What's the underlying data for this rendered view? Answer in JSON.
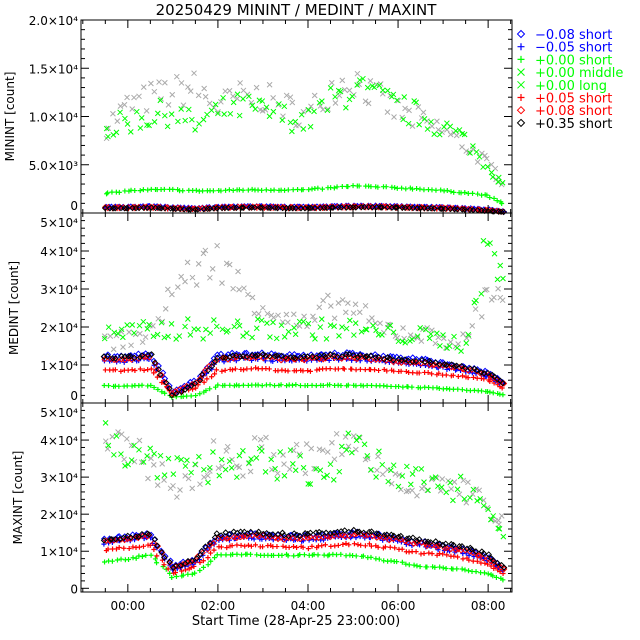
{
  "chart_data": {
    "type": "scatter",
    "title": "20250429 MININT / MEDINT / MAXINT",
    "xlabel": "Start Time (28-Apr-25 23:00:00)",
    "xlim": [
      -1.04,
      8.53
    ],
    "x_tick_values": [
      0,
      2,
      4,
      6,
      8
    ],
    "x_tick_labels": [
      "00:00",
      "02:00",
      "04:00",
      "06:00",
      "08:00"
    ],
    "x": [
      -0.5,
      0,
      0.5,
      1,
      1.5,
      2,
      2.5,
      3,
      3.5,
      4,
      4.5,
      5,
      5.5,
      6,
      6.5,
      7,
      7.5,
      8,
      8.4
    ],
    "legend_position": "right, outside",
    "legend": [
      {
        "id": "m008",
        "label": "−0.08 short",
        "color": "#0000ff",
        "marker": "diamond"
      },
      {
        "id": "m005",
        "label": "−0.05 short",
        "color": "#0000ff",
        "marker": "plus"
      },
      {
        "id": "p000s",
        "label": "+0.00 short",
        "color": "#00ff00",
        "marker": "plus"
      },
      {
        "id": "p000m",
        "label": "+0.00 middle",
        "color": "#00ff00",
        "marker": "x",
        "plot_color": "#aaaaaa"
      },
      {
        "id": "p000l",
        "label": "+0.00 long",
        "color": "#00ff00",
        "marker": "x"
      },
      {
        "id": "p005",
        "label": "+0.05 short",
        "color": "#ff0000",
        "marker": "plus"
      },
      {
        "id": "p008",
        "label": "+0.08 short",
        "color": "#ff0000",
        "marker": "diamond"
      },
      {
        "id": "p035",
        "label": "+0.35 short",
        "color": "#000000",
        "marker": "diamond"
      }
    ],
    "panels": [
      {
        "ylabel": "MININT [count]",
        "ylim": [
          0,
          20000
        ],
        "y_tick_values": [
          0,
          5000,
          10000,
          15000,
          20000
        ],
        "y_tick_labels": [
          "0",
          "5.0×10³",
          "1.0×10⁴",
          "1.5×10⁴",
          "2.0×10⁴"
        ],
        "series": {
          "p000m": [
            9000,
            11000,
            12000,
            12500,
            13000,
            11000,
            12000,
            12000,
            11000,
            10000,
            13000,
            14000,
            12000,
            10500,
            9500,
            8500,
            7000,
            5000,
            3000
          ],
          "p000l": [
            8500,
            9500,
            10000,
            10500,
            9000,
            10500,
            11000,
            10500,
            10000,
            9500,
            11500,
            13000,
            12000,
            11000,
            10000,
            9000,
            7500,
            5000,
            2500
          ],
          "p000s": [
            2000,
            2300,
            2400,
            2400,
            2300,
            2300,
            2400,
            2400,
            2400,
            2400,
            2600,
            2800,
            2700,
            2600,
            2500,
            2300,
            2100,
            1800,
            800
          ],
          "m008": [
            650,
            650,
            700,
            600,
            500,
            650,
            700,
            700,
            650,
            650,
            700,
            750,
            750,
            700,
            650,
            600,
            500,
            350,
            150
          ],
          "m005": [
            550,
            550,
            600,
            500,
            450,
            550,
            600,
            600,
            550,
            550,
            600,
            650,
            650,
            600,
            550,
            500,
            400,
            300,
            100
          ],
          "p005": [
            450,
            450,
            500,
            400,
            350,
            450,
            500,
            500,
            450,
            450,
            500,
            550,
            550,
            500,
            450,
            400,
            350,
            250,
            100
          ],
          "p008": [
            600,
            600,
            650,
            550,
            450,
            600,
            650,
            650,
            600,
            600,
            650,
            700,
            700,
            650,
            600,
            550,
            450,
            300,
            120
          ],
          "p035": [
            500,
            500,
            550,
            450,
            350,
            500,
            550,
            550,
            500,
            500,
            550,
            600,
            600,
            550,
            500,
            450,
            350,
            200,
            80
          ]
        }
      },
      {
        "ylabel": "MEDINT [count]",
        "ylim": [
          0,
          50000
        ],
        "y_tick_values": [
          0,
          10000,
          20000,
          30000,
          40000,
          50000
        ],
        "y_tick_labels": [
          "0",
          "1×10⁴",
          "2×10⁴",
          "3×10⁴",
          "4×10⁴",
          "5×10⁴"
        ],
        "series": {
          "p000m": [
            16000,
            17000,
            18000,
            30000,
            35000,
            38000,
            30000,
            26000,
            22000,
            20000,
            26000,
            25000,
            20000,
            19000,
            18000,
            17000,
            16000,
            30000,
            28000
          ],
          "p000l": [
            18000,
            18500,
            19000,
            19500,
            19500,
            19500,
            19500,
            19500,
            19500,
            19500,
            19500,
            19500,
            18500,
            18000,
            17500,
            16500,
            15500,
            42000,
            30000
          ],
          "p000s": [
            4500,
            4500,
            4600,
            1500,
            2000,
            4600,
            4700,
            4700,
            4700,
            4700,
            4700,
            4600,
            4500,
            4300,
            4100,
            3800,
            3400,
            3000,
            2000
          ],
          "m008": [
            12500,
            12500,
            13000,
            3000,
            6000,
            12500,
            13000,
            13000,
            12500,
            12500,
            13000,
            13000,
            12500,
            12000,
            11500,
            10500,
            9500,
            8000,
            5000
          ],
          "m005": [
            11000,
            11000,
            11500,
            2500,
            5000,
            11000,
            11500,
            11500,
            11000,
            11000,
            11500,
            11500,
            11000,
            10500,
            10000,
            9200,
            8300,
            7000,
            4500
          ],
          "p005": [
            8500,
            8500,
            9000,
            2000,
            4000,
            8500,
            9000,
            9000,
            8500,
            8500,
            9000,
            9000,
            8800,
            8500,
            8000,
            7500,
            7000,
            6000,
            3500
          ],
          "p008": [
            11500,
            11500,
            12000,
            2500,
            5500,
            11500,
            12000,
            12000,
            11500,
            11500,
            12000,
            12000,
            11500,
            11000,
            10500,
            9800,
            9000,
            7500,
            4800
          ],
          "p035": [
            12000,
            12000,
            12500,
            2000,
            5000,
            12000,
            12500,
            12500,
            12000,
            12000,
            12500,
            12500,
            12000,
            11500,
            11000,
            10200,
            9300,
            7800,
            4800
          ]
        }
      },
      {
        "ylabel": "MAXINT [count]",
        "ylim": [
          -1000,
          50000
        ],
        "y_tick_values": [
          0,
          10000,
          20000,
          30000,
          40000,
          50000
        ],
        "y_tick_labels": [
          "0",
          "1×10⁴",
          "2×10⁴",
          "3×10⁴",
          "4×10⁴",
          "5×10⁴"
        ],
        "series": {
          "p000m": [
            40000,
            36000,
            34000,
            27000,
            30000,
            36000,
            34000,
            37000,
            34000,
            35000,
            36000,
            40000,
            33000,
            30000,
            28000,
            27000,
            26000,
            22000,
            18000
          ],
          "p000l": [
            43000,
            36000,
            35000,
            34000,
            33000,
            33000,
            33500,
            33000,
            33000,
            32000,
            33000,
            38000,
            33000,
            30000,
            29000,
            28000,
            27000,
            22000,
            15000
          ],
          "p000s": [
            7000,
            8000,
            9000,
            3000,
            4000,
            9000,
            9000,
            9000,
            9000,
            9000,
            9000,
            9000,
            8000,
            7000,
            6000,
            5500,
            5000,
            4000,
            2000
          ],
          "m008": [
            13000,
            14000,
            14500,
            6000,
            8000,
            14000,
            14500,
            14500,
            14000,
            14000,
            14500,
            15000,
            14500,
            13500,
            12500,
            11500,
            10500,
            8500,
            5000
          ],
          "m005": [
            12000,
            13000,
            13500,
            5000,
            7000,
            13000,
            13500,
            13500,
            13000,
            13000,
            13500,
            14000,
            13500,
            12500,
            11500,
            10500,
            9500,
            7500,
            4500
          ],
          "p005": [
            10500,
            11000,
            11500,
            4000,
            6000,
            11000,
            11500,
            11500,
            11000,
            11000,
            11500,
            12000,
            11500,
            10500,
            9500,
            9000,
            8000,
            6500,
            3500
          ],
          "p008": [
            12500,
            13500,
            14000,
            5500,
            7500,
            13500,
            14000,
            14000,
            13500,
            13500,
            14000,
            14500,
            14000,
            13000,
            12000,
            11000,
            10000,
            8000,
            4500
          ],
          "p035": [
            13000,
            14000,
            14500,
            5500,
            8000,
            14500,
            15000,
            15000,
            14500,
            14500,
            15000,
            15500,
            15000,
            14000,
            13000,
            12000,
            11000,
            9000,
            5000
          ]
        }
      }
    ]
  }
}
